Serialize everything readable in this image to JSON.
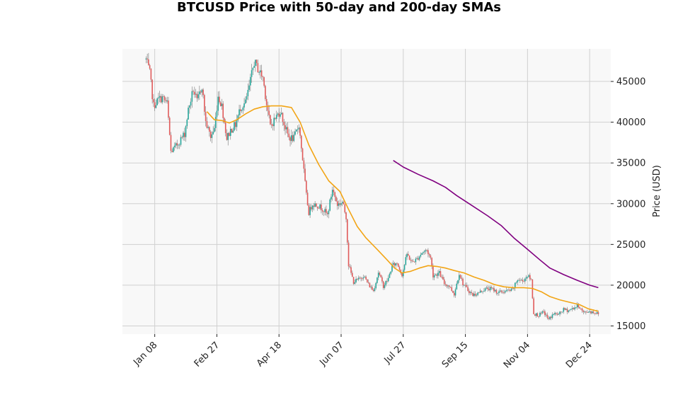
{
  "chart_data": {
    "type": "candlestick",
    "title": "BTCUSD Price with 50-day and 200-day SMAs",
    "xlabel": "",
    "ylabel": "Price (USD)",
    "ylim": [
      14000,
      49000
    ],
    "y_ticks": [
      15000,
      20000,
      25000,
      30000,
      35000,
      40000,
      45000
    ],
    "x_ticks": [
      {
        "date": "2022-01-08",
        "label": "Jan 08"
      },
      {
        "date": "2022-02-27",
        "label": "Feb 27"
      },
      {
        "date": "2022-04-18",
        "label": "Apr 18"
      },
      {
        "date": "2022-06-07",
        "label": "Jun 07"
      },
      {
        "date": "2022-07-27",
        "label": "Jul 27"
      },
      {
        "date": "2022-09-15",
        "label": "Sep 15"
      },
      {
        "date": "2022-11-04",
        "label": "Nov 04"
      },
      {
        "date": "2022-12-24",
        "label": "Dec 24"
      }
    ],
    "xlim": [
      "2021-12-13",
      "2023-01-10"
    ],
    "grid": true,
    "colors": {
      "up": "#26a69a",
      "down": "#e05a5a",
      "wick": "#777777",
      "sma50": "#f2a516",
      "sma200": "#800080",
      "plot_bg": "#f8f8f8",
      "grid": "#d0d0d0"
    },
    "close_anchors": [
      [
        "2022-01-01",
        47700
      ],
      [
        "2022-01-04",
        46000
      ],
      [
        "2022-01-07",
        42000
      ],
      [
        "2022-01-11",
        42800
      ],
      [
        "2022-01-14",
        43000
      ],
      [
        "2022-01-18",
        42300
      ],
      [
        "2022-01-21",
        36400
      ],
      [
        "2022-01-24",
        36800
      ],
      [
        "2022-01-28",
        37700
      ],
      [
        "2022-02-01",
        38600
      ],
      [
        "2022-02-04",
        41500
      ],
      [
        "2022-02-08",
        44000
      ],
      [
        "2022-02-11",
        42500
      ],
      [
        "2022-02-15",
        44500
      ],
      [
        "2022-02-18",
        40000
      ],
      [
        "2022-02-22",
        38200
      ],
      [
        "2022-02-25",
        39200
      ],
      [
        "2022-02-28",
        43200
      ],
      [
        "2022-03-03",
        42000
      ],
      [
        "2022-03-07",
        38000
      ],
      [
        "2022-03-10",
        39000
      ],
      [
        "2022-03-14",
        39700
      ],
      [
        "2022-03-18",
        41800
      ],
      [
        "2022-03-22",
        42400
      ],
      [
        "2022-03-25",
        44300
      ],
      [
        "2022-03-29",
        47400
      ],
      [
        "2022-04-02",
        46300
      ],
      [
        "2022-04-05",
        45500
      ],
      [
        "2022-04-08",
        42300
      ],
      [
        "2022-04-11",
        39500
      ],
      [
        "2022-04-15",
        40500
      ],
      [
        "2022-04-19",
        41400
      ],
      [
        "2022-04-22",
        39800
      ],
      [
        "2022-04-26",
        38100
      ],
      [
        "2022-04-30",
        38000
      ],
      [
        "2022-05-04",
        39700
      ],
      [
        "2022-05-07",
        35500
      ],
      [
        "2022-05-10",
        31000
      ],
      [
        "2022-05-12",
        28900
      ],
      [
        "2022-05-15",
        30000
      ],
      [
        "2022-05-19",
        29800
      ],
      [
        "2022-05-23",
        29400
      ],
      [
        "2022-05-27",
        28600
      ],
      [
        "2022-05-31",
        31800
      ],
      [
        "2022-06-04",
        29900
      ],
      [
        "2022-06-08",
        30200
      ],
      [
        "2022-06-11",
        28400
      ],
      [
        "2022-06-13",
        22500
      ],
      [
        "2022-06-17",
        20400
      ],
      [
        "2022-06-21",
        20700
      ],
      [
        "2022-06-25",
        21200
      ],
      [
        "2022-06-29",
        20100
      ],
      [
        "2022-07-03",
        19300
      ],
      [
        "2022-07-07",
        21600
      ],
      [
        "2022-07-11",
        19900
      ],
      [
        "2022-07-15",
        20800
      ],
      [
        "2022-07-18",
        22400
      ],
      [
        "2022-07-22",
        22700
      ],
      [
        "2022-07-26",
        21300
      ],
      [
        "2022-07-30",
        23800
      ],
      [
        "2022-08-03",
        22800
      ],
      [
        "2022-08-07",
        23200
      ],
      [
        "2022-08-11",
        24000
      ],
      [
        "2022-08-15",
        24300
      ],
      [
        "2022-08-18",
        23300
      ],
      [
        "2022-08-20",
        21200
      ],
      [
        "2022-08-25",
        21500
      ],
      [
        "2022-08-29",
        20200
      ],
      [
        "2022-09-02",
        19900
      ],
      [
        "2022-09-06",
        18900
      ],
      [
        "2022-09-10",
        21500
      ],
      [
        "2022-09-13",
        20200
      ],
      [
        "2022-09-17",
        19400
      ],
      [
        "2022-09-21",
        18800
      ],
      [
        "2022-09-25",
        19000
      ],
      [
        "2022-09-29",
        19400
      ],
      [
        "2022-10-03",
        19600
      ],
      [
        "2022-10-07",
        19500
      ],
      [
        "2022-10-11",
        19100
      ],
      [
        "2022-10-15",
        19200
      ],
      [
        "2022-10-19",
        19300
      ],
      [
        "2022-10-23",
        19400
      ],
      [
        "2022-10-27",
        20700
      ],
      [
        "2022-10-31",
        20500
      ],
      [
        "2022-11-04",
        21200
      ],
      [
        "2022-11-07",
        20600
      ],
      [
        "2022-11-09",
        16500
      ],
      [
        "2022-11-13",
        16300
      ],
      [
        "2022-11-17",
        16700
      ],
      [
        "2022-11-21",
        15800
      ],
      [
        "2022-11-25",
        16500
      ],
      [
        "2022-11-29",
        16400
      ],
      [
        "2022-12-03",
        17000
      ],
      [
        "2022-12-07",
        16900
      ],
      [
        "2022-12-11",
        17200
      ],
      [
        "2022-12-15",
        17500
      ],
      [
        "2022-12-19",
        16600
      ],
      [
        "2022-12-23",
        16800
      ],
      [
        "2022-12-27",
        16700
      ],
      [
        "2022-12-31",
        16500
      ]
    ],
    "series": [
      {
        "name": "SMA 50",
        "points": [
          [
            "2022-02-19",
            41300
          ],
          [
            "2022-02-25",
            40300
          ],
          [
            "2022-03-03",
            40200
          ],
          [
            "2022-03-09",
            39900
          ],
          [
            "2022-03-15",
            40300
          ],
          [
            "2022-03-22",
            41000
          ],
          [
            "2022-03-29",
            41600
          ],
          [
            "2022-04-05",
            41900
          ],
          [
            "2022-04-12",
            42000
          ],
          [
            "2022-04-20",
            42000
          ],
          [
            "2022-04-28",
            41800
          ],
          [
            "2022-05-05",
            40000
          ],
          [
            "2022-05-12",
            37200
          ],
          [
            "2022-05-20",
            34800
          ],
          [
            "2022-05-28",
            32800
          ],
          [
            "2022-06-06",
            31500
          ],
          [
            "2022-06-13",
            29300
          ],
          [
            "2022-06-20",
            27200
          ],
          [
            "2022-06-27",
            25800
          ],
          [
            "2022-07-06",
            24400
          ],
          [
            "2022-07-14",
            23100
          ],
          [
            "2022-07-20",
            22100
          ],
          [
            "2022-07-26",
            21500
          ],
          [
            "2022-08-02",
            21700
          ],
          [
            "2022-08-09",
            22100
          ],
          [
            "2022-08-16",
            22400
          ],
          [
            "2022-08-23",
            22300
          ],
          [
            "2022-08-30",
            22100
          ],
          [
            "2022-09-06",
            21800
          ],
          [
            "2022-09-14",
            21500
          ],
          [
            "2022-09-22",
            21000
          ],
          [
            "2022-09-30",
            20600
          ],
          [
            "2022-10-08",
            20100
          ],
          [
            "2022-10-16",
            19800
          ],
          [
            "2022-10-24",
            19700
          ],
          [
            "2022-11-01",
            19700
          ],
          [
            "2022-11-08",
            19600
          ],
          [
            "2022-11-15",
            19200
          ],
          [
            "2022-11-22",
            18600
          ],
          [
            "2022-11-30",
            18200
          ],
          [
            "2022-12-08",
            17900
          ],
          [
            "2022-12-16",
            17600
          ],
          [
            "2022-12-23",
            17100
          ],
          [
            "2022-12-31",
            16800
          ]
        ]
      },
      {
        "name": "SMA 200",
        "points": [
          [
            "2022-07-19",
            35300
          ],
          [
            "2022-07-27",
            34500
          ],
          [
            "2022-08-08",
            33600
          ],
          [
            "2022-08-20",
            32800
          ],
          [
            "2022-08-30",
            32000
          ],
          [
            "2022-09-08",
            31000
          ],
          [
            "2022-09-20",
            29800
          ],
          [
            "2022-10-03",
            28500
          ],
          [
            "2022-10-14",
            27300
          ],
          [
            "2022-10-24",
            25800
          ],
          [
            "2022-11-04",
            24400
          ],
          [
            "2022-11-14",
            23100
          ],
          [
            "2022-11-22",
            22100
          ],
          [
            "2022-12-03",
            21300
          ],
          [
            "2022-12-14",
            20600
          ],
          [
            "2022-12-24",
            20000
          ],
          [
            "2022-12-31",
            19700
          ]
        ]
      }
    ]
  }
}
